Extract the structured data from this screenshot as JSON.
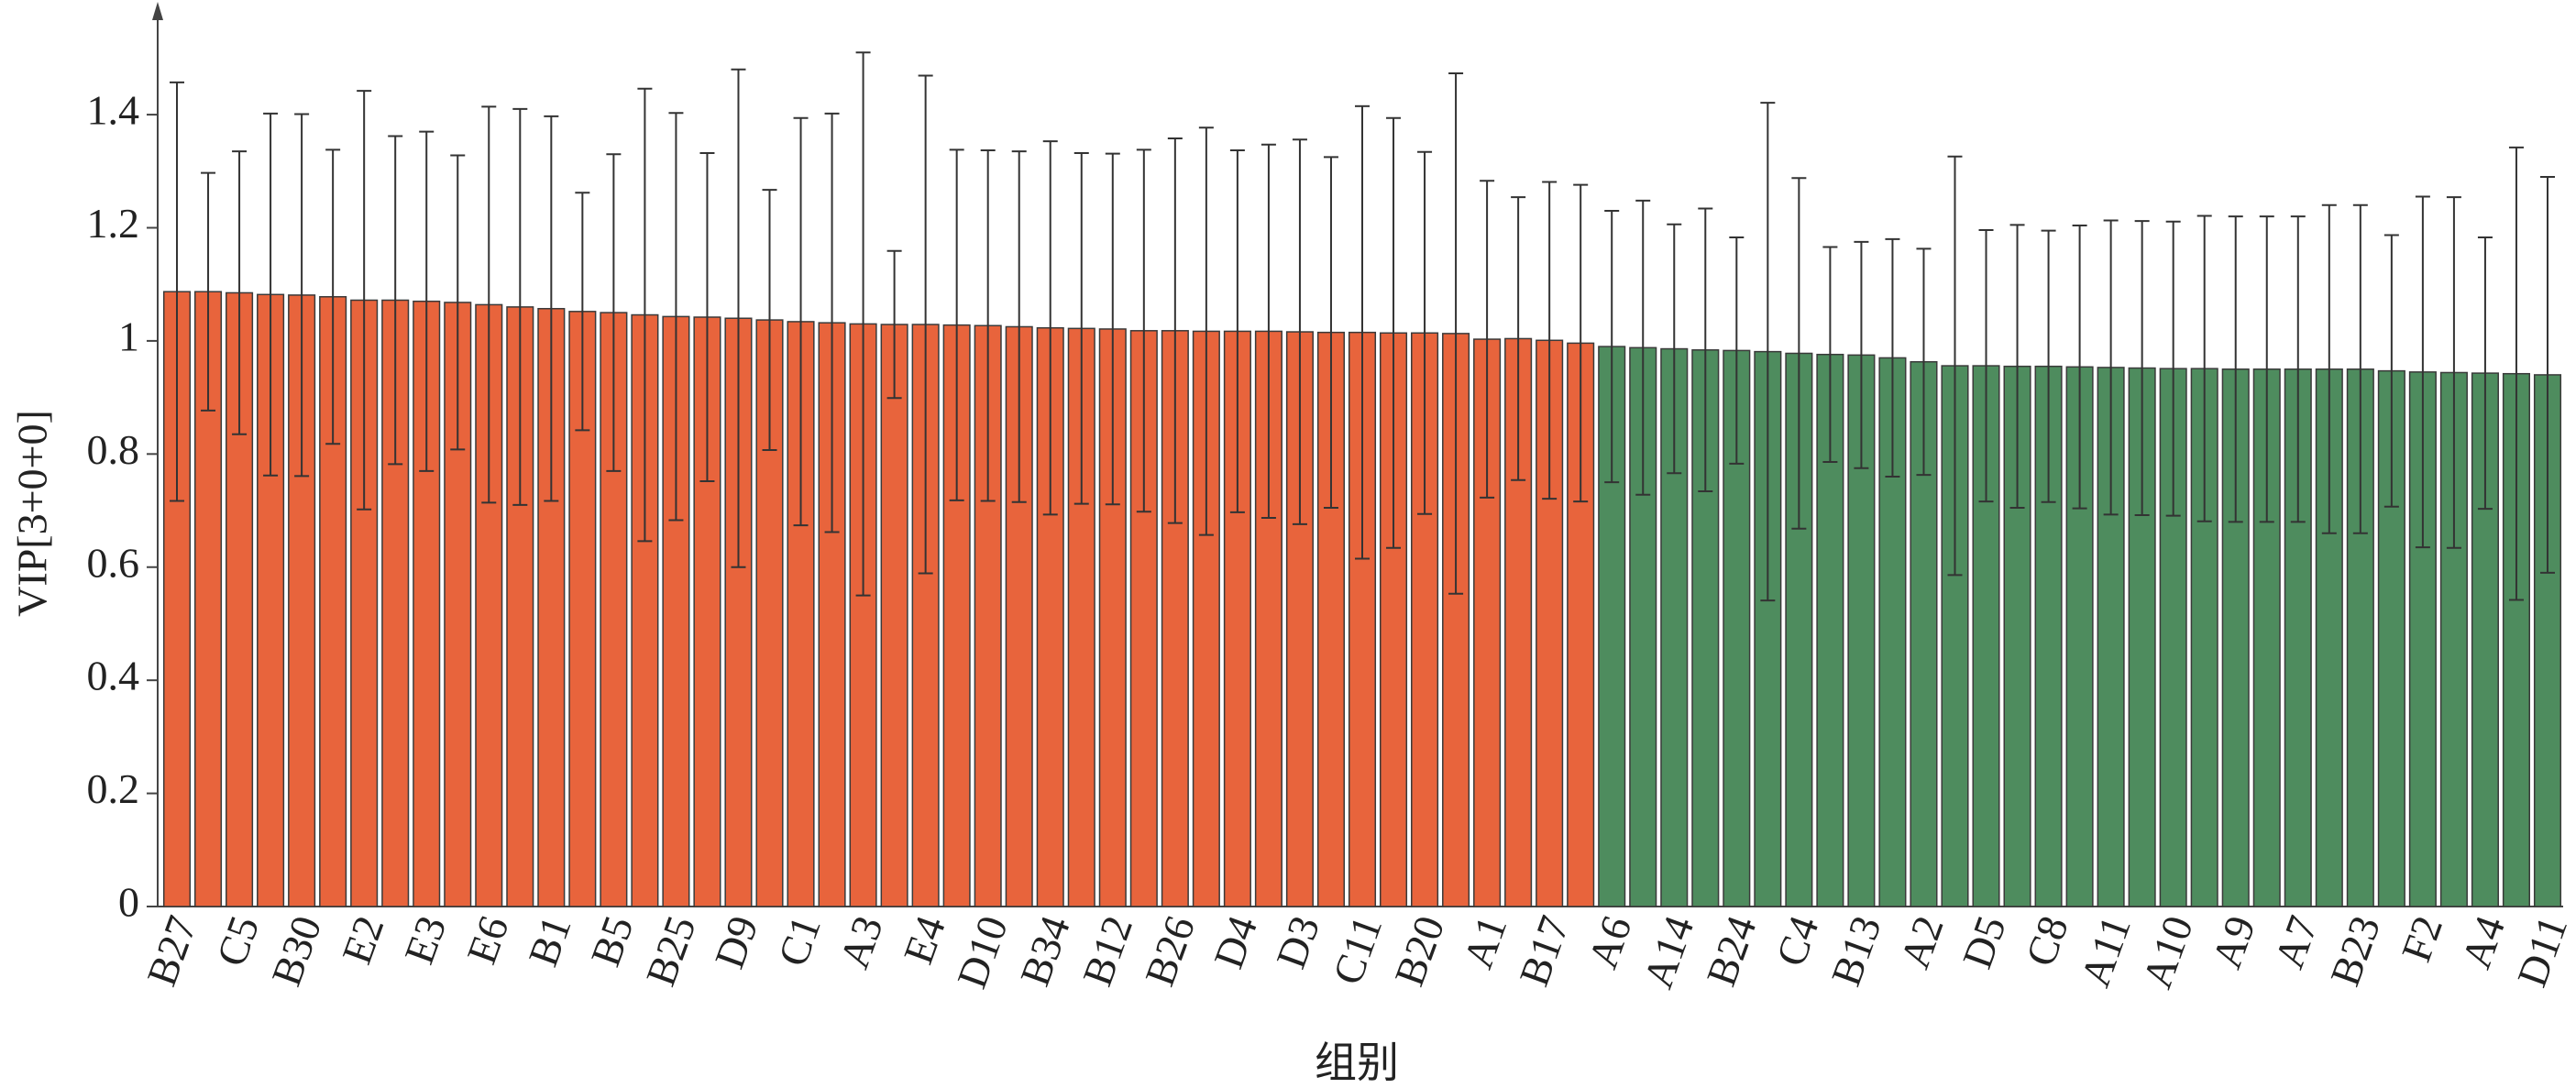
{
  "chart_data": {
    "type": "bar",
    "xlabel": "组别",
    "ylabel": "VIP[3+0+0]",
    "categories": [
      "B27",
      null,
      "C5",
      null,
      "B30",
      null,
      "E2",
      null,
      "E3",
      null,
      "E6",
      null,
      "B1",
      null,
      "B5",
      null,
      "B25",
      null,
      "D9",
      null,
      "C1",
      null,
      "A3",
      null,
      "E4",
      null,
      "D10",
      null,
      "B34",
      null,
      "B12",
      null,
      "B26",
      null,
      "D4",
      null,
      "D3",
      null,
      "C11",
      null,
      "B20",
      null,
      "A1",
      null,
      "B17",
      null,
      "A6",
      null,
      "A14",
      null,
      "B24",
      null,
      "C4",
      null,
      "B13",
      null,
      "A2",
      null,
      "D5",
      null,
      "C8",
      null,
      "A11",
      null,
      "A10",
      null,
      "A9",
      null,
      "A7",
      null,
      "B23",
      null,
      "F2",
      null,
      "A4",
      null,
      "D11"
    ],
    "values": [
      1.087,
      1.087,
      1.085,
      1.082,
      1.081,
      1.078,
      1.072,
      1.072,
      1.07,
      1.068,
      1.064,
      1.06,
      1.057,
      1.052,
      1.05,
      1.046,
      1.043,
      1.042,
      1.04,
      1.037,
      1.034,
      1.032,
      1.03,
      1.029,
      1.029,
      1.028,
      1.027,
      1.025,
      1.023,
      1.022,
      1.021,
      1.018,
      1.018,
      1.017,
      1.017,
      1.017,
      1.016,
      1.015,
      1.015,
      1.014,
      1.014,
      1.013,
      1.003,
      1.004,
      1.001,
      0.996,
      0.99,
      0.988,
      0.986,
      0.984,
      0.983,
      0.981,
      0.978,
      0.976,
      0.975,
      0.97,
      0.963,
      0.956,
      0.956,
      0.955,
      0.955,
      0.954,
      0.953,
      0.952,
      0.951,
      0.951,
      0.95,
      0.95,
      0.95,
      0.95,
      0.95,
      0.947,
      0.945,
      0.944,
      0.943,
      0.942,
      0.94
    ],
    "errors": [
      0.37,
      0.21,
      0.25,
      0.32,
      0.32,
      0.26,
      0.37,
      0.29,
      0.3,
      0.26,
      0.35,
      0.35,
      0.34,
      0.21,
      0.28,
      0.4,
      0.36,
      0.29,
      0.44,
      0.23,
      0.36,
      0.37,
      0.48,
      0.13,
      0.44,
      0.31,
      0.31,
      0.31,
      0.33,
      0.31,
      0.31,
      0.32,
      0.34,
      0.36,
      0.32,
      0.33,
      0.34,
      0.31,
      0.4,
      0.38,
      0.32,
      0.46,
      0.28,
      0.25,
      0.28,
      0.28,
      0.24,
      0.26,
      0.22,
      0.25,
      0.2,
      0.44,
      0.31,
      0.19,
      0.2,
      0.21,
      0.2,
      0.37,
      0.24,
      0.25,
      0.24,
      0.25,
      0.26,
      0.26,
      0.26,
      0.27,
      0.27,
      0.27,
      0.27,
      0.29,
      0.29,
      0.24,
      0.31,
      0.31,
      0.24,
      0.4,
      0.35
    ],
    "colors": [
      "#e8643c",
      "#e8643c",
      "#e8643c",
      "#e8643c",
      "#e8643c",
      "#e8643c",
      "#e8643c",
      "#e8643c",
      "#e8643c",
      "#e8643c",
      "#e8643c",
      "#e8643c",
      "#e8643c",
      "#e8643c",
      "#e8643c",
      "#e8643c",
      "#e8643c",
      "#e8643c",
      "#e8643c",
      "#e8643c",
      "#e8643c",
      "#e8643c",
      "#e8643c",
      "#e8643c",
      "#e8643c",
      "#e8643c",
      "#e8643c",
      "#e8643c",
      "#e8643c",
      "#e8643c",
      "#e8643c",
      "#e8643c",
      "#e8643c",
      "#e8643c",
      "#e8643c",
      "#e8643c",
      "#e8643c",
      "#e8643c",
      "#e8643c",
      "#e8643c",
      "#e8643c",
      "#e8643c",
      "#e8643c",
      "#e8643c",
      "#e8643c",
      "#e8643c",
      "#4e8c5e",
      "#4e8c5e",
      "#4e8c5e",
      "#4e8c5e",
      "#4e8c5e",
      "#4e8c5e",
      "#4e8c5e",
      "#4e8c5e",
      "#4e8c5e",
      "#4e8c5e",
      "#4e8c5e",
      "#4e8c5e",
      "#4e8c5e",
      "#4e8c5e",
      "#4e8c5e",
      "#4e8c5e",
      "#4e8c5e",
      "#4e8c5e",
      "#4e8c5e",
      "#4e8c5e",
      "#4e8c5e",
      "#4e8c5e",
      "#4e8c5e",
      "#4e8c5e",
      "#4e8c5e",
      "#4e8c5e",
      "#4e8c5e",
      "#4e8c5e",
      "#4e8c5e",
      "#4e8c5e",
      "#4e8c5e"
    ],
    "ylim": [
      0,
      1.58
    ],
    "yticks": [
      0,
      0.2,
      0.4,
      0.6,
      0.8,
      1,
      1.2,
      1.4
    ],
    "grid": false
  }
}
